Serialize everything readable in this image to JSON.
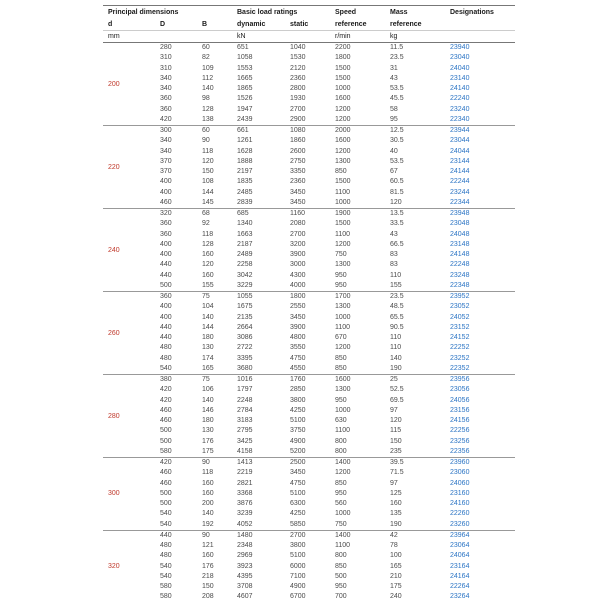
{
  "header": {
    "groups": {
      "principal_dimensions": "Principal dimensions",
      "basic_load_ratings": "Basic load ratings",
      "speed": "Speed",
      "mass": "Mass",
      "designations": "Designations"
    },
    "sub": {
      "d": "d",
      "D": "D",
      "B": "B",
      "dynamic": "dynamic",
      "static": "static",
      "speed_ref": "reference",
      "mass_ref": "reference"
    },
    "units": {
      "dimensions": "mm",
      "load": "kN",
      "speed": "r/min",
      "mass": "kg"
    }
  },
  "colors": {
    "designation_link": "#2b74c4",
    "group_label_red": "#c0392b",
    "data_text": "#4a4a4a",
    "header_text": "#1a1a1a",
    "rule_dark": "#777777",
    "rule_light": "#cccccc",
    "group_separator": "#999999"
  },
  "table": {
    "columns": [
      "D",
      "B",
      "dynamic",
      "static",
      "speed",
      "mass",
      "designation"
    ],
    "groups": [
      {
        "d": "200",
        "rows": [
          [
            "280",
            "60",
            "651",
            "1040",
            "2200",
            "11.5",
            "23940"
          ],
          [
            "310",
            "82",
            "1058",
            "1530",
            "1800",
            "23.5",
            "23040"
          ],
          [
            "310",
            "109",
            "1553",
            "2120",
            "1500",
            "31",
            "24040"
          ],
          [
            "340",
            "112",
            "1665",
            "2360",
            "1500",
            "43",
            "23140"
          ],
          [
            "340",
            "140",
            "1865",
            "2800",
            "1000",
            "53.5",
            "24140"
          ],
          [
            "360",
            "98",
            "1526",
            "1930",
            "1600",
            "45.5",
            "22240"
          ],
          [
            "360",
            "128",
            "1947",
            "2700",
            "1200",
            "58",
            "23240"
          ],
          [
            "420",
            "138",
            "2439",
            "2900",
            "1200",
            "95",
            "22340"
          ]
        ]
      },
      {
        "d": "220",
        "rows": [
          [
            "300",
            "60",
            "661",
            "1080",
            "2000",
            "12.5",
            "23944"
          ],
          [
            "340",
            "90",
            "1261",
            "1860",
            "1600",
            "30.5",
            "23044"
          ],
          [
            "340",
            "118",
            "1628",
            "2600",
            "1200",
            "40",
            "24044"
          ],
          [
            "370",
            "120",
            "1888",
            "2750",
            "1300",
            "53.5",
            "23144"
          ],
          [
            "370",
            "150",
            "2197",
            "3350",
            "850",
            "67",
            "24144"
          ],
          [
            "400",
            "108",
            "1835",
            "2360",
            "1500",
            "60.5",
            "22244"
          ],
          [
            "400",
            "144",
            "2485",
            "3450",
            "1100",
            "81.5",
            "23244"
          ],
          [
            "460",
            "145",
            "2839",
            "3450",
            "1000",
            "120",
            "22344"
          ]
        ]
      },
      {
        "d": "240",
        "rows": [
          [
            "320",
            "68",
            "685",
            "1160",
            "1900",
            "13.5",
            "23948"
          ],
          [
            "360",
            "92",
            "1340",
            "2080",
            "1500",
            "33.5",
            "23048"
          ],
          [
            "360",
            "118",
            "1663",
            "2700",
            "1100",
            "43",
            "24048"
          ],
          [
            "400",
            "128",
            "2187",
            "3200",
            "1200",
            "66.5",
            "23148"
          ],
          [
            "400",
            "160",
            "2489",
            "3900",
            "750",
            "83",
            "24148"
          ],
          [
            "440",
            "120",
            "2258",
            "3000",
            "1300",
            "83",
            "22248"
          ],
          [
            "440",
            "160",
            "3042",
            "4300",
            "950",
            "110",
            "23248"
          ],
          [
            "500",
            "155",
            "3229",
            "4000",
            "950",
            "155",
            "22348"
          ]
        ]
      },
      {
        "d": "260",
        "rows": [
          [
            "360",
            "75",
            "1055",
            "1800",
            "1700",
            "23.5",
            "23952"
          ],
          [
            "400",
            "104",
            "1675",
            "2550",
            "1300",
            "48.5",
            "23052"
          ],
          [
            "400",
            "140",
            "2135",
            "3450",
            "1000",
            "65.5",
            "24052"
          ],
          [
            "440",
            "144",
            "2664",
            "3900",
            "1100",
            "90.5",
            "23152"
          ],
          [
            "440",
            "180",
            "3086",
            "4800",
            "670",
            "110",
            "24152"
          ],
          [
            "480",
            "130",
            "2722",
            "3550",
            "1200",
            "110",
            "22252"
          ],
          [
            "480",
            "174",
            "3395",
            "4750",
            "850",
            "140",
            "23252"
          ],
          [
            "540",
            "165",
            "3680",
            "4550",
            "850",
            "190",
            "22352"
          ]
        ]
      },
      {
        "d": "280",
        "rows": [
          [
            "380",
            "75",
            "1016",
            "1760",
            "1600",
            "25",
            "23956"
          ],
          [
            "420",
            "106",
            "1797",
            "2850",
            "1300",
            "52.5",
            "23056"
          ],
          [
            "420",
            "140",
            "2248",
            "3800",
            "950",
            "69.5",
            "24056"
          ],
          [
            "460",
            "146",
            "2784",
            "4250",
            "1000",
            "97",
            "23156"
          ],
          [
            "460",
            "180",
            "3183",
            "5100",
            "630",
            "120",
            "24156"
          ],
          [
            "500",
            "130",
            "2795",
            "3750",
            "1100",
            "115",
            "22256"
          ],
          [
            "500",
            "176",
            "3425",
            "4900",
            "800",
            "150",
            "23256"
          ],
          [
            "580",
            "175",
            "4158",
            "5200",
            "800",
            "235",
            "22356"
          ]
        ]
      },
      {
        "d": "300",
        "rows": [
          [
            "420",
            "90",
            "1413",
            "2500",
            "1400",
            "39.5",
            "23960"
          ],
          [
            "460",
            "118",
            "2219",
            "3450",
            "1200",
            "71.5",
            "23060"
          ],
          [
            "460",
            "160",
            "2821",
            "4750",
            "850",
            "97",
            "24060"
          ],
          [
            "500",
            "160",
            "3368",
            "5100",
            "950",
            "125",
            "23160"
          ],
          [
            "500",
            "200",
            "3876",
            "6300",
            "560",
            "160",
            "24160"
          ],
          [
            "540",
            "140",
            "3239",
            "4250",
            "1000",
            "135",
            "22260"
          ],
          [
            "540",
            "192",
            "4052",
            "5850",
            "750",
            "190",
            "23260"
          ]
        ]
      },
      {
        "d": "320",
        "rows": [
          [
            "440",
            "90",
            "1480",
            "2700",
            "1400",
            "42",
            "23964"
          ],
          [
            "480",
            "121",
            "2348",
            "3800",
            "1100",
            "78",
            "23064"
          ],
          [
            "480",
            "160",
            "2969",
            "5100",
            "800",
            "100",
            "24064"
          ],
          [
            "540",
            "176",
            "3923",
            "6000",
            "850",
            "165",
            "23164"
          ],
          [
            "540",
            "218",
            "4395",
            "7100",
            "500",
            "210",
            "24164"
          ],
          [
            "580",
            "150",
            "3708",
            "4900",
            "950",
            "175",
            "22264"
          ],
          [
            "580",
            "208",
            "4607",
            "6700",
            "700",
            "240",
            "23264"
          ]
        ]
      }
    ]
  }
}
